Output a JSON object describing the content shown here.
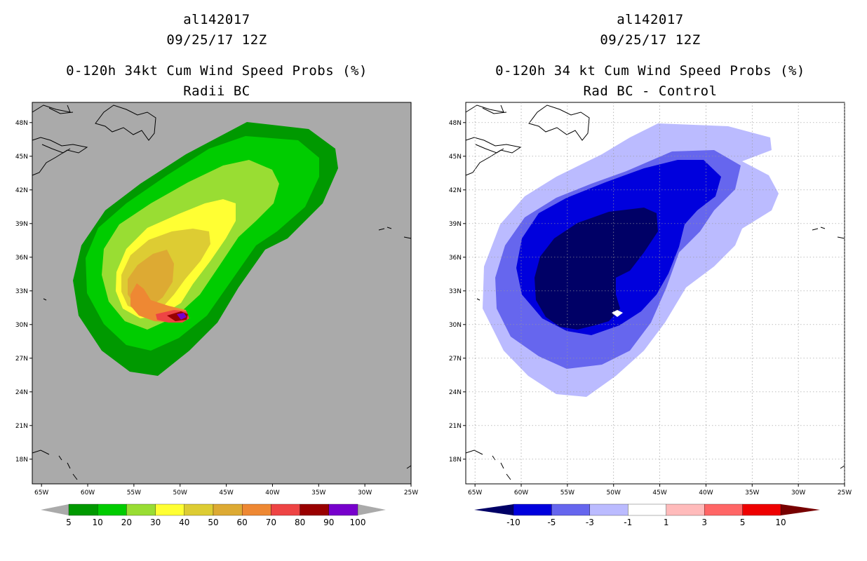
{
  "left_panel": {
    "title_line1": "al142017",
    "title_line2": "09/25/17 12Z",
    "title_line3": "0-120h 34kt Cum Wind Speed Probs (%)",
    "title_line4": "Radii BC",
    "colorbar": {
      "labels": [
        "5",
        "10",
        "20",
        "30",
        "40",
        "50",
        "60",
        "70",
        "80",
        "90",
        "100"
      ],
      "colors": [
        "#009900",
        "#00cc00",
        "#99dd33",
        "#ffff33",
        "#ddcc33",
        "#ddaa33",
        "#ee8833",
        "#ee4444",
        "#990000",
        "#7700cc"
      ]
    }
  },
  "right_panel": {
    "title_line1": "al142017",
    "title_line2": "09/25/17 12Z",
    "title_line3": "0-120h 34 kt Cum Wind Speed Probs (%)",
    "title_line4": "Rad BC - Control",
    "colorbar": {
      "labels": [
        "-10",
        "-5",
        "-3",
        "-1",
        "1",
        "3",
        "5",
        "10"
      ],
      "colors": [
        "#0000dd",
        "#6666ee",
        "#bbbbff",
        "#ffffff",
        "#ffbbbb",
        "#ff6666",
        "#ee0000"
      ]
    }
  },
  "axes": {
    "lat_labels": [
      "48N",
      "45N",
      "42N",
      "39N",
      "36N",
      "33N",
      "30N",
      "27N",
      "24N",
      "21N",
      "18N"
    ],
    "lon_labels": [
      "65W",
      "60W",
      "55W",
      "50W",
      "45W",
      "40W",
      "35W",
      "30W",
      "25W"
    ]
  },
  "map_extent": {
    "lon_min": -66,
    "lon_max": -25,
    "lat_min": 15.8,
    "lat_max": 49.8
  }
}
